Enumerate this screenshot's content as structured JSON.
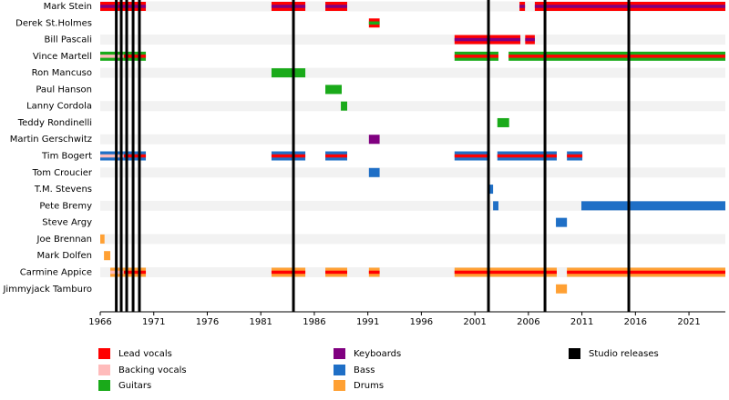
{
  "chart_data": {
    "type": "timeline",
    "xlim": [
      1966,
      2024.4
    ],
    "xticks": [
      1966,
      1971,
      1976,
      1981,
      1986,
      1991,
      1996,
      2001,
      2006,
      2011,
      2016,
      2021
    ],
    "roles": [
      {
        "name": "Lead vocals",
        "color": "#ff0000"
      },
      {
        "name": "Backing vocals",
        "color": "#ffbbbb"
      },
      {
        "name": "Guitars",
        "color": "#1aaa1a"
      },
      {
        "name": "Keyboards",
        "color": "#800080"
      },
      {
        "name": "Bass",
        "color": "#1f6fc6"
      },
      {
        "name": "Drums",
        "color": "#ffa033"
      }
    ],
    "studio_releases": {
      "name": "Studio releases",
      "color": "#000000",
      "values": [
        1967.5,
        1967.96,
        1968.47,
        1969.07,
        1969.66,
        1984.05,
        2002.27,
        2007.55,
        2015.38
      ]
    },
    "members": [
      {
        "name": "Mark Stein",
        "periods": [
          {
            "start": 1966,
            "end": 1970.26,
            "roles": [
              "Lead vocals",
              "Keyboards"
            ]
          },
          {
            "start": 1982.0,
            "end": 1985.16,
            "roles": [
              "Lead vocals",
              "Keyboards"
            ]
          },
          {
            "start": 1987.03,
            "end": 1989.07,
            "roles": [
              "Lead vocals",
              "Keyboards"
            ]
          },
          {
            "start": 2005.17,
            "end": 2005.68,
            "roles": [
              "Lead vocals",
              "Keyboards"
            ]
          },
          {
            "start": 2006.6,
            "end": 2024.4,
            "roles": [
              "Lead vocals",
              "Keyboards"
            ]
          }
        ]
      },
      {
        "name": "Derek St.Holmes",
        "periods": [
          {
            "start": 1991.1,
            "end": 1992.1,
            "roles": [
              "Lead vocals",
              "Guitars"
            ]
          }
        ]
      },
      {
        "name": "Bill Pascali",
        "periods": [
          {
            "start": 1999.1,
            "end": 2005.25,
            "roles": [
              "Lead vocals",
              "Keyboards"
            ]
          },
          {
            "start": 2005.7,
            "end": 2006.6,
            "roles": [
              "Lead vocals",
              "Keyboards"
            ]
          }
        ]
      },
      {
        "name": "Vince Martell",
        "periods": [
          {
            "start": 1966,
            "end": 1968.2,
            "roles": [
              "Guitars",
              "Backing vocals"
            ]
          },
          {
            "start": 1968.2,
            "end": 1970.26,
            "roles": [
              "Guitars",
              "Lead vocals"
            ]
          },
          {
            "start": 1999.1,
            "end": 2003.2,
            "roles": [
              "Guitars",
              "Lead vocals"
            ]
          },
          {
            "start": 2004.15,
            "end": 2024.4,
            "roles": [
              "Guitars",
              "Lead vocals"
            ]
          }
        ]
      },
      {
        "name": "Ron Mancuso",
        "periods": [
          {
            "start": 1982.0,
            "end": 1985.16,
            "roles": [
              "Guitars"
            ]
          }
        ]
      },
      {
        "name": "Paul Hanson",
        "periods": [
          {
            "start": 1987.03,
            "end": 1988.56,
            "roles": [
              "Guitars"
            ]
          }
        ]
      },
      {
        "name": "Lanny Cordola",
        "periods": [
          {
            "start": 1988.48,
            "end": 1989.07,
            "roles": [
              "Guitars"
            ]
          }
        ]
      },
      {
        "name": "Teddy Rondinelli",
        "periods": [
          {
            "start": 2003.1,
            "end": 2004.2,
            "roles": [
              "Guitars"
            ]
          }
        ]
      },
      {
        "name": "Martin Gerschwitz",
        "periods": [
          {
            "start": 1991.1,
            "end": 1992.1,
            "roles": [
              "Keyboards"
            ]
          }
        ]
      },
      {
        "name": "Tim Bogert",
        "periods": [
          {
            "start": 1966,
            "end": 1968.2,
            "roles": [
              "Bass",
              "Backing vocals"
            ]
          },
          {
            "start": 1968.2,
            "end": 1970.26,
            "roles": [
              "Bass",
              "Lead vocals"
            ]
          },
          {
            "start": 1982.0,
            "end": 1985.16,
            "roles": [
              "Bass",
              "Lead vocals"
            ]
          },
          {
            "start": 1987.03,
            "end": 1989.07,
            "roles": [
              "Bass",
              "Lead vocals"
            ]
          },
          {
            "start": 1999.1,
            "end": 2002.4,
            "roles": [
              "Bass",
              "Lead vocals"
            ]
          },
          {
            "start": 2003.1,
            "end": 2008.65,
            "roles": [
              "Bass",
              "Lead vocals"
            ]
          },
          {
            "start": 2009.6,
            "end": 2011.04,
            "roles": [
              "Bass",
              "Lead vocals"
            ]
          }
        ]
      },
      {
        "name": "Tom Croucier",
        "periods": [
          {
            "start": 1991.1,
            "end": 1992.1,
            "roles": [
              "Bass"
            ]
          }
        ]
      },
      {
        "name": "T.M. Stevens",
        "periods": [
          {
            "start": 2002.27,
            "end": 2002.7,
            "roles": [
              "Bass"
            ]
          }
        ]
      },
      {
        "name": "Pete Bremy",
        "periods": [
          {
            "start": 2002.7,
            "end": 2003.2,
            "roles": [
              "Bass"
            ]
          },
          {
            "start": 2010.95,
            "end": 2024.4,
            "roles": [
              "Bass"
            ]
          }
        ]
      },
      {
        "name": "Steve Argy",
        "periods": [
          {
            "start": 2008.57,
            "end": 2009.6,
            "roles": [
              "Bass"
            ]
          }
        ]
      },
      {
        "name": "Joe Brennan",
        "periods": [
          {
            "start": 1966,
            "end": 1966.4,
            "roles": [
              "Drums"
            ]
          }
        ]
      },
      {
        "name": "Mark Dolfen",
        "periods": [
          {
            "start": 1966.35,
            "end": 1966.94,
            "roles": [
              "Drums"
            ]
          }
        ]
      },
      {
        "name": "Carmine Appice",
        "periods": [
          {
            "start": 1966.94,
            "end": 1968.2,
            "roles": [
              "Drums",
              "Backing vocals"
            ]
          },
          {
            "start": 1968.2,
            "end": 1970.26,
            "roles": [
              "Drums",
              "Lead vocals"
            ]
          },
          {
            "start": 1982.0,
            "end": 1985.16,
            "roles": [
              "Drums",
              "Lead vocals"
            ]
          },
          {
            "start": 1987.03,
            "end": 1989.07,
            "roles": [
              "Drums",
              "Lead vocals"
            ]
          },
          {
            "start": 1991.1,
            "end": 1992.1,
            "roles": [
              "Drums",
              "Lead vocals"
            ]
          },
          {
            "start": 1999.1,
            "end": 2008.65,
            "roles": [
              "Drums",
              "Lead vocals"
            ]
          },
          {
            "start": 2009.6,
            "end": 2024.4,
            "roles": [
              "Drums",
              "Lead vocals"
            ]
          }
        ]
      },
      {
        "name": "Jimmyjack Tamburo",
        "periods": [
          {
            "start": 2008.57,
            "end": 2009.6,
            "roles": [
              "Drums"
            ]
          }
        ]
      }
    ]
  }
}
